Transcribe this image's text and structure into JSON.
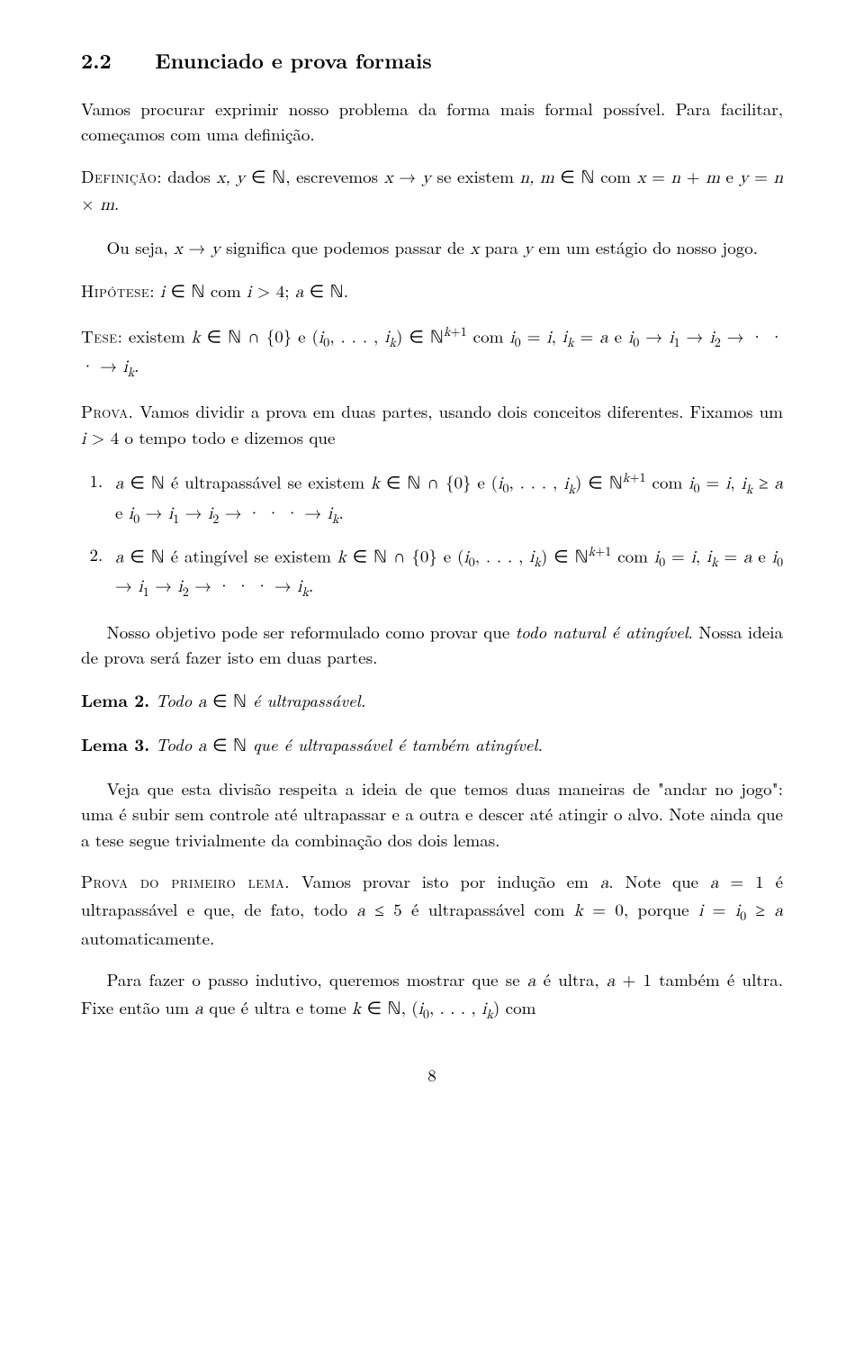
{
  "section": {
    "number": "2.2",
    "title": "Enunciado e prova formais"
  },
  "intro": "Vamos procurar exprimir nosso problema da forma mais formal possível. Para facilitar, começamos com uma definição.",
  "definicao": {
    "label": "Definição",
    "text1": ": dados ",
    "text2": ", escrevemos ",
    "text3": " se existem ",
    "text4": " com ",
    "text5": " e ",
    "math_xy": "x, y ∈ ℕ",
    "math_arrow": "x → y",
    "math_nm": "n, m ∈ ℕ",
    "math_xn": "x = n + m",
    "math_yn": "y = n × m"
  },
  "ou_seja": {
    "text1": "Ou seja, ",
    "text2": " significa que podemos passar de ",
    "text3": " para ",
    "text4": " em um estágio do nosso jogo.",
    "math_arrow": "x → y",
    "math_x": "x",
    "math_y": "y"
  },
  "hipotese": {
    "label": "Hipótese",
    "text1": ": ",
    "text2": " com ",
    "text3": "; ",
    "math_in": "i ∈ ℕ",
    "math_i4": "i > 4",
    "math_an": "a ∈ ℕ"
  },
  "tese": {
    "label": "Tese",
    "text1": ": existem ",
    "text2": " e ",
    "text3": " com ",
    "text4": ", ",
    "text5": " e ",
    "math_k": "k ∈ ℕ ∩ {0}",
    "math_tuple": "(i₀, . . . , iₖ) ∈ ℕᵏ⁺¹",
    "math_i0i": "i₀ = i",
    "math_ika": "iₖ = a",
    "math_chain": "i₀ → i₁ → i₂ → · · · → iₖ"
  },
  "prova": {
    "label": "Prova.",
    "text1": " Vamos dividir a prova em duas partes, usando dois conceitos diferentes. Fixamos um ",
    "text2": " o tempo todo e dizemos que",
    "math_i4": "i > 4"
  },
  "items": {
    "1": {
      "num": "1.",
      "text1": " é ultrapassável se existem ",
      "text2": " e ",
      "text3": " com ",
      "text4": ", ",
      "text5": " e ",
      "math_an": "a ∈ ℕ",
      "math_k": "k ∈ ℕ ∩ {0}",
      "math_tuple": "(i₀, . . . , iₖ) ∈ ℕᵏ⁺¹",
      "math_i0i": "i₀ = i",
      "math_ika": "iₖ ≥ a",
      "math_chain": "i₀ → i₁ → i₂ → · · · → iₖ"
    },
    "2": {
      "num": "2.",
      "text1": " é atingível se existem ",
      "text2": " e ",
      "text3": " com ",
      "text4": ", ",
      "text5": " e ",
      "math_an": "a ∈ ℕ",
      "math_k": "k ∈ ℕ ∩ {0}",
      "math_tuple": "(i₀, . . . , iₖ) ∈ ℕᵏ⁺¹",
      "math_i0i": "i₀ = i",
      "math_ika": "iₖ = a",
      "math_chain": "i₀ → i₁ → i₂ → · · · → iₖ"
    }
  },
  "nosso_objetivo": {
    "text1": "Nosso objetivo pode ser reformulado como provar que ",
    "text2": ". Nossa ideia de prova será fazer isto em duas partes.",
    "italic": "todo natural é atingível"
  },
  "lema2": {
    "head": "Lema 2.",
    "text1": " Todo ",
    "text2": " é ultrapassável.",
    "math": "a ∈ ℕ"
  },
  "lema3": {
    "head": "Lema 3.",
    "text1": " Todo ",
    "text2": " que é ultrapassável é também atingível.",
    "math": "a ∈ ℕ"
  },
  "veja": "Veja que esta divisão respeita a ideia de que temos duas maneiras de \"andar no jogo\": uma é subir sem controle até ultrapassar e a outra e descer até atingir o alvo. Note ainda que a tese segue trivialmente da combinação dos dois lemas.",
  "prova_primeiro": {
    "label": "Prova do primeiro lema.",
    "text1": " Vamos provar isto por indução em ",
    "text2": ". Note que ",
    "text3": " é ultrapassável e que, de fato, todo ",
    "text4": " é ultrapassável com ",
    "text5": ", porque ",
    "text6": " automaticamente.",
    "math_a": "a",
    "math_a1": "a = 1",
    "math_a5": "a ≤ 5",
    "math_k0": "k = 0",
    "math_ii0": "i = i₀ ≥ a"
  },
  "passo_indutivo": {
    "text1": "Para fazer o passo indutivo, queremos mostrar que se ",
    "text2": " é ultra, ",
    "text3": " também é ultra. Fixe então um ",
    "text4": " que é ultra e tome ",
    "text5": ", ",
    "text6": " com",
    "math_a": "a",
    "math_a1": "a + 1",
    "math_a2": "a",
    "math_kn": "k ∈ ℕ",
    "math_tuple": "(i₀, . . . , iₖ)"
  },
  "page_number": "8",
  "colors": {
    "text": "#000000",
    "background": "#ffffff"
  },
  "typography": {
    "body_fontsize": 19,
    "heading_fontsize": 23,
    "font_family": "Latin Modern Roman"
  }
}
